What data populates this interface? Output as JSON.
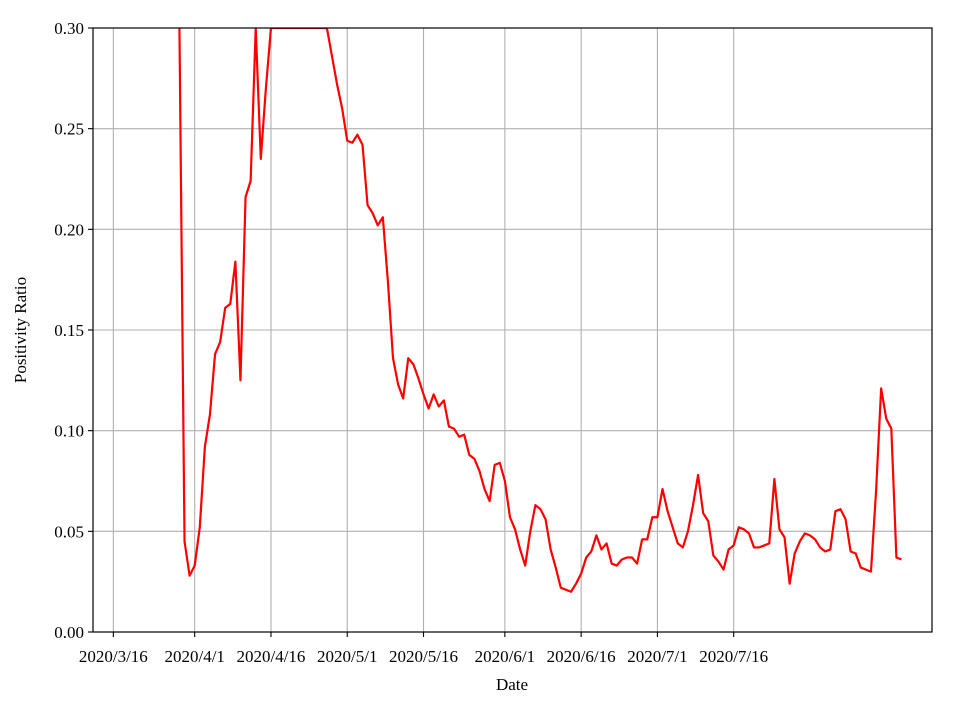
{
  "chart_data": {
    "type": "line",
    "title": "",
    "xlabel": "Date",
    "ylabel": "Positivity Ratio",
    "ylim": [
      0,
      0.3
    ],
    "yticks": [
      "0.00",
      "0.05",
      "0.10",
      "0.15",
      "0.20",
      "0.25",
      "0.30"
    ],
    "xticks": [
      {
        "date": "2020-03-16",
        "label": "2020/3/16"
      },
      {
        "date": "2020-04-01",
        "label": "2020/4/1"
      },
      {
        "date": "2020-04-16",
        "label": "2020/4/16"
      },
      {
        "date": "2020-05-01",
        "label": "2020/5/1"
      },
      {
        "date": "2020-05-16",
        "label": "2020/5/16"
      },
      {
        "date": "2020-06-01",
        "label": "2020/6/1"
      },
      {
        "date": "2020-06-16",
        "label": "2020/6/16"
      },
      {
        "date": "2020-07-01",
        "label": "2020/7/1"
      },
      {
        "date": "2020-07-16",
        "label": "2020/7/16"
      }
    ],
    "xlim": [
      "2020-03-12",
      "2020-08-24"
    ],
    "grid": true,
    "series": [
      {
        "color": "#ff0000",
        "points": [
          [
            "2020-03-29",
            0.3
          ],
          [
            "2020-03-30",
            0.045
          ],
          [
            "2020-03-31",
            0.028
          ],
          [
            "2020-04-01",
            0.033
          ],
          [
            "2020-04-02",
            0.052
          ],
          [
            "2020-04-03",
            0.092
          ],
          [
            "2020-04-04",
            0.108
          ],
          [
            "2020-04-05",
            0.138
          ],
          [
            "2020-04-06",
            0.144
          ],
          [
            "2020-04-07",
            0.161
          ],
          [
            "2020-04-08",
            0.163
          ],
          [
            "2020-04-09",
            0.184
          ],
          [
            "2020-04-10",
            0.125
          ],
          [
            "2020-04-11",
            0.216
          ],
          [
            "2020-04-12",
            0.224
          ],
          [
            "2020-04-13",
            0.3
          ],
          [
            "2020-04-13",
            0.3
          ],
          [
            "2020-04-14",
            0.235
          ],
          [
            "2020-04-15",
            0.27
          ],
          [
            "2020-04-16",
            0.3
          ],
          [
            "2020-04-27",
            0.3
          ],
          [
            "2020-04-28",
            0.286
          ],
          [
            "2020-04-29",
            0.272
          ],
          [
            "2020-04-30",
            0.26
          ],
          [
            "2020-05-01",
            0.244
          ],
          [
            "2020-05-02",
            0.243
          ],
          [
            "2020-05-03",
            0.247
          ],
          [
            "2020-05-04",
            0.242
          ],
          [
            "2020-05-05",
            0.212
          ],
          [
            "2020-05-06",
            0.208
          ],
          [
            "2020-05-07",
            0.202
          ],
          [
            "2020-05-08",
            0.206
          ],
          [
            "2020-05-09",
            0.174
          ],
          [
            "2020-05-10",
            0.136
          ],
          [
            "2020-05-11",
            0.123
          ],
          [
            "2020-05-12",
            0.116
          ],
          [
            "2020-05-13",
            0.136
          ],
          [
            "2020-05-14",
            0.133
          ],
          [
            "2020-05-15",
            0.126
          ],
          [
            "2020-05-16",
            0.118
          ],
          [
            "2020-05-17",
            0.111
          ],
          [
            "2020-05-18",
            0.118
          ],
          [
            "2020-05-19",
            0.112
          ],
          [
            "2020-05-20",
            0.115
          ],
          [
            "2020-05-21",
            0.102
          ],
          [
            "2020-05-22",
            0.101
          ],
          [
            "2020-05-23",
            0.097
          ],
          [
            "2020-05-24",
            0.098
          ],
          [
            "2020-05-25",
            0.088
          ],
          [
            "2020-05-26",
            0.086
          ],
          [
            "2020-05-27",
            0.08
          ],
          [
            "2020-05-28",
            0.071
          ],
          [
            "2020-05-29",
            0.065
          ],
          [
            "2020-05-30",
            0.083
          ],
          [
            "2020-05-31",
            0.084
          ],
          [
            "2020-06-01",
            0.075
          ],
          [
            "2020-06-02",
            0.057
          ],
          [
            "2020-06-03",
            0.051
          ],
          [
            "2020-06-04",
            0.041
          ],
          [
            "2020-06-05",
            0.033
          ],
          [
            "2020-06-06",
            0.05
          ],
          [
            "2020-06-07",
            0.063
          ],
          [
            "2020-06-08",
            0.061
          ],
          [
            "2020-06-09",
            0.056
          ],
          [
            "2020-06-10",
            0.041
          ],
          [
            "2020-06-11",
            0.032
          ],
          [
            "2020-06-12",
            0.022
          ],
          [
            "2020-06-13",
            0.021
          ],
          [
            "2020-06-14",
            0.02
          ],
          [
            "2020-06-15",
            0.024
          ],
          [
            "2020-06-16",
            0.029
          ],
          [
            "2020-06-17",
            0.037
          ],
          [
            "2020-06-18",
            0.04
          ],
          [
            "2020-06-19",
            0.048
          ],
          [
            "2020-06-20",
            0.041
          ],
          [
            "2020-06-21",
            0.044
          ],
          [
            "2020-06-22",
            0.034
          ],
          [
            "2020-06-23",
            0.033
          ],
          [
            "2020-06-24",
            0.036
          ],
          [
            "2020-06-25",
            0.037
          ],
          [
            "2020-06-26",
            0.037
          ],
          [
            "2020-06-27",
            0.034
          ],
          [
            "2020-06-28",
            0.046
          ],
          [
            "2020-06-29",
            0.046
          ],
          [
            "2020-06-30",
            0.057
          ],
          [
            "2020-07-01",
            0.057
          ],
          [
            "2020-07-02",
            0.071
          ],
          [
            "2020-07-03",
            0.06
          ],
          [
            "2020-07-04",
            0.052
          ],
          [
            "2020-07-05",
            0.044
          ],
          [
            "2020-07-06",
            0.042
          ],
          [
            "2020-07-07",
            0.05
          ],
          [
            "2020-07-08",
            0.063
          ],
          [
            "2020-07-09",
            0.078
          ],
          [
            "2020-07-10",
            0.059
          ],
          [
            "2020-07-11",
            0.055
          ],
          [
            "2020-07-12",
            0.038
          ],
          [
            "2020-07-13",
            0.035
          ],
          [
            "2020-07-14",
            0.031
          ],
          [
            "2020-07-15",
            0.041
          ],
          [
            "2020-07-16",
            0.043
          ],
          [
            "2020-07-17",
            0.052
          ],
          [
            "2020-07-18",
            0.051
          ],
          [
            "2020-07-19",
            0.049
          ],
          [
            "2020-07-20",
            0.042
          ],
          [
            "2020-07-21",
            0.042
          ],
          [
            "2020-07-22",
            0.043
          ],
          [
            "2020-07-23",
            0.044
          ],
          [
            "2020-07-24",
            0.076
          ],
          [
            "2020-07-25",
            0.051
          ],
          [
            "2020-07-26",
            0.047
          ],
          [
            "2020-07-27",
            0.024
          ],
          [
            "2020-07-28",
            0.039
          ],
          [
            "2020-07-29",
            0.045
          ],
          [
            "2020-07-30",
            0.049
          ],
          [
            "2020-07-31",
            0.048
          ],
          [
            "2020-08-01",
            0.046
          ],
          [
            "2020-08-02",
            0.042
          ],
          [
            "2020-08-03",
            0.04
          ],
          [
            "2020-08-04",
            0.041
          ],
          [
            "2020-08-05",
            0.06
          ],
          [
            "2020-08-06",
            0.061
          ],
          [
            "2020-08-07",
            0.056
          ],
          [
            "2020-08-08",
            0.04
          ],
          [
            "2020-08-09",
            0.039
          ],
          [
            "2020-08-10",
            0.032
          ],
          [
            "2020-08-11",
            0.031
          ],
          [
            "2020-08-12",
            0.03
          ],
          [
            "2020-08-13",
            0.07
          ],
          [
            "2020-08-14",
            0.121
          ],
          [
            "2020-08-15",
            0.106
          ],
          [
            "2020-08-16",
            0.101
          ],
          [
            "2020-08-17",
            0.037
          ],
          [
            "2020-08-18",
            0.036
          ]
        ]
      }
    ]
  }
}
